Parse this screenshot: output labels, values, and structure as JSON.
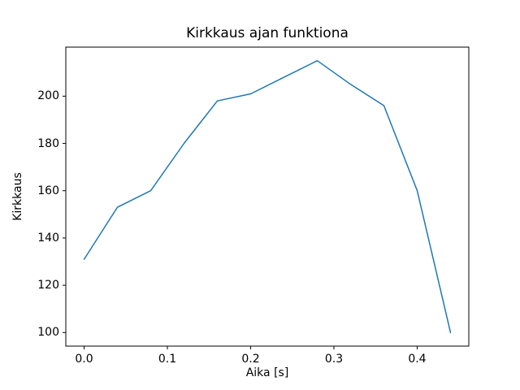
{
  "chart_data": {
    "type": "line",
    "title": "Kirkkaus ajan funktiona",
    "xlabel": "Aika [s]",
    "ylabel": "Kirkkaus",
    "x": [
      0.0,
      0.04,
      0.08,
      0.12,
      0.16,
      0.2,
      0.24,
      0.28,
      0.32,
      0.36,
      0.4,
      0.44
    ],
    "y": [
      131,
      153,
      160,
      180,
      198,
      201,
      208,
      215,
      205,
      196,
      160,
      100
    ],
    "xticks": [
      0.0,
      0.1,
      0.2,
      0.3,
      0.4
    ],
    "xtick_labels": [
      "0.0",
      "0.1",
      "0.2",
      "0.3",
      "0.4"
    ],
    "yticks": [
      100,
      120,
      140,
      160,
      180,
      200
    ],
    "ytick_labels": [
      "100",
      "120",
      "140",
      "160",
      "180",
      "200"
    ],
    "xlim": [
      -0.022,
      0.462
    ],
    "ylim": [
      94.25,
      220.75
    ],
    "line_color": "#1f77b4",
    "frame_color": "#000000",
    "grid": false,
    "legend": null
  }
}
